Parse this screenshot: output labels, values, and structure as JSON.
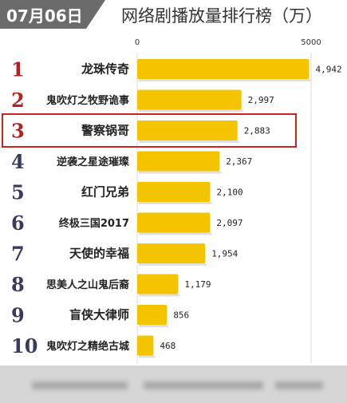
{
  "header": {
    "date": "07月06日",
    "title": "网络剧播放量排行榜（万）"
  },
  "chart_data": {
    "type": "bar",
    "orientation": "horizontal",
    "title": "网络剧播放量排行榜（万）",
    "xlim": [
      0,
      5000
    ],
    "ticks": [
      "0",
      "5000"
    ],
    "grid": true,
    "categories": [
      "龙珠传奇",
      "鬼吹灯之牧野诡事",
      "警察锅哥",
      "逆袭之星途璀璨",
      "红门兄弟",
      "终极三国2017",
      "天使的幸福",
      "思美人之山鬼后裔",
      "盲侠大律师",
      "鬼吹灯之精绝古城"
    ],
    "ranks": [
      "1",
      "2",
      "3",
      "4",
      "5",
      "6",
      "7",
      "8",
      "9",
      "10"
    ],
    "values": [
      4942,
      2997,
      2883,
      2367,
      2100,
      2097,
      1954,
      1179,
      856,
      468
    ],
    "value_labels": [
      "4,942",
      "2,997",
      "2,883",
      "2,367",
      "2,100",
      "2,097",
      "1,954",
      "1,179",
      "856",
      "468"
    ],
    "highlighted_rank": "3",
    "colors": {
      "bar": "#f5c400",
      "rank_top": "#b22222",
      "rank_rest": "#3a3a5a",
      "highlight": "#cc2222"
    }
  }
}
